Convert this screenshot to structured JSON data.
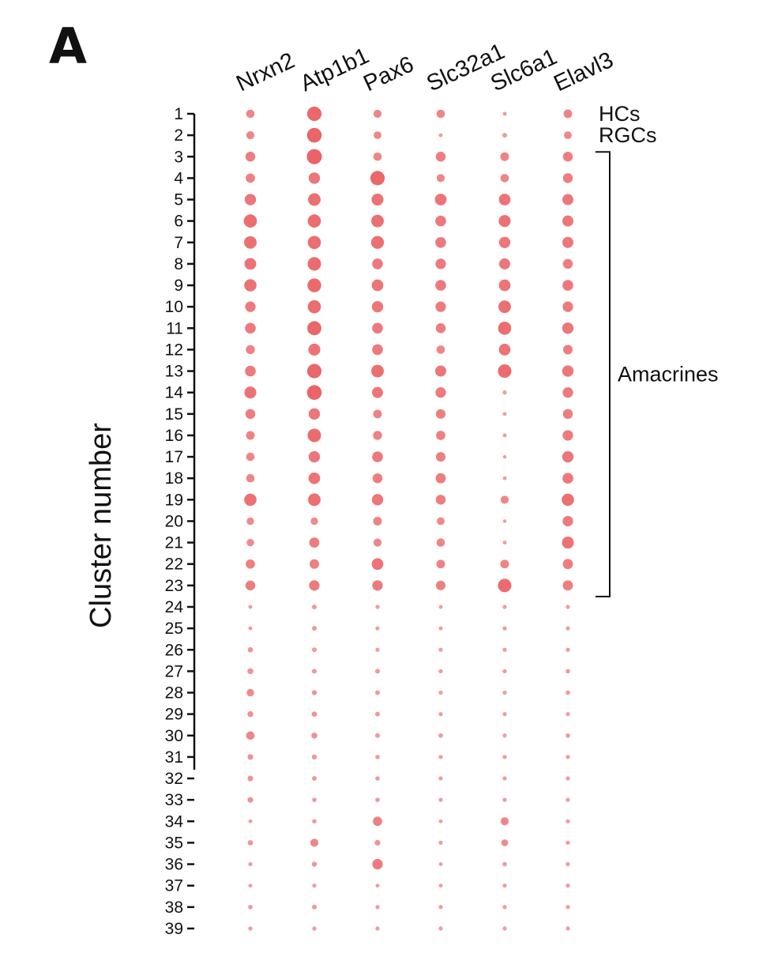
{
  "panel_label": "A",
  "chart_data": {
    "type": "scatter",
    "ylabel": "Cluster number",
    "genes": [
      "Nrxn2",
      "Atp1b1",
      "Pax6",
      "Slc32a1",
      "Slc6a1",
      "Elavl3"
    ],
    "clusters": [
      1,
      2,
      3,
      4,
      5,
      6,
      7,
      8,
      9,
      10,
      11,
      12,
      13,
      14,
      15,
      16,
      17,
      18,
      19,
      20,
      21,
      22,
      23,
      24,
      25,
      26,
      27,
      28,
      29,
      30,
      31,
      32,
      33,
      34,
      35,
      36,
      37,
      38,
      39
    ],
    "group_annotations": [
      {
        "label": "HCs",
        "clusters": [
          1
        ]
      },
      {
        "label": "RGCs",
        "clusters": [
          2
        ]
      },
      {
        "label": "Amacrines",
        "clusters": [
          3,
          23
        ]
      }
    ],
    "color": "#e8585b",
    "dot_size_scale": "relative expression, 0–1",
    "values": [
      [
        0.4,
        0.8,
        0.38,
        0.4,
        0.1,
        0.42
      ],
      [
        0.38,
        0.82,
        0.36,
        0.1,
        0.16,
        0.36
      ],
      [
        0.5,
        0.85,
        0.4,
        0.5,
        0.42,
        0.5
      ],
      [
        0.46,
        0.6,
        0.8,
        0.38,
        0.4,
        0.5
      ],
      [
        0.6,
        0.68,
        0.64,
        0.62,
        0.62,
        0.58
      ],
      [
        0.72,
        0.72,
        0.68,
        0.56,
        0.64,
        0.58
      ],
      [
        0.68,
        0.72,
        0.7,
        0.56,
        0.6,
        0.58
      ],
      [
        0.62,
        0.74,
        0.56,
        0.54,
        0.58,
        0.5
      ],
      [
        0.66,
        0.76,
        0.62,
        0.56,
        0.62,
        0.56
      ],
      [
        0.54,
        0.72,
        0.6,
        0.54,
        0.68,
        0.54
      ],
      [
        0.56,
        0.78,
        0.56,
        0.5,
        0.72,
        0.6
      ],
      [
        0.44,
        0.64,
        0.56,
        0.4,
        0.62,
        0.48
      ],
      [
        0.56,
        0.8,
        0.68,
        0.58,
        0.74,
        0.6
      ],
      [
        0.64,
        0.82,
        0.58,
        0.54,
        0.12,
        0.54
      ],
      [
        0.5,
        0.6,
        0.42,
        0.48,
        0.1,
        0.5
      ],
      [
        0.42,
        0.74,
        0.44,
        0.46,
        0.1,
        0.54
      ],
      [
        0.4,
        0.6,
        0.56,
        0.48,
        0.08,
        0.6
      ],
      [
        0.4,
        0.62,
        0.5,
        0.52,
        0.1,
        0.56
      ],
      [
        0.66,
        0.68,
        0.6,
        0.5,
        0.38,
        0.66
      ],
      [
        0.34,
        0.34,
        0.42,
        0.36,
        0.08,
        0.54
      ],
      [
        0.34,
        0.52,
        0.38,
        0.4,
        0.1,
        0.64
      ],
      [
        0.46,
        0.48,
        0.62,
        0.42,
        0.42,
        0.52
      ],
      [
        0.5,
        0.54,
        0.54,
        0.48,
        0.74,
        0.52
      ],
      [
        0.1,
        0.16,
        0.12,
        0.1,
        0.12,
        0.12
      ],
      [
        0.1,
        0.16,
        0.12,
        0.1,
        0.12,
        0.12
      ],
      [
        0.2,
        0.16,
        0.12,
        0.12,
        0.12,
        0.12
      ],
      [
        0.24,
        0.16,
        0.16,
        0.12,
        0.12,
        0.14
      ],
      [
        0.34,
        0.18,
        0.16,
        0.12,
        0.12,
        0.14
      ],
      [
        0.24,
        0.2,
        0.16,
        0.12,
        0.12,
        0.12
      ],
      [
        0.4,
        0.24,
        0.16,
        0.14,
        0.12,
        0.14
      ],
      [
        0.22,
        0.18,
        0.14,
        0.12,
        0.12,
        0.12
      ],
      [
        0.22,
        0.16,
        0.14,
        0.12,
        0.12,
        0.12
      ],
      [
        0.22,
        0.14,
        0.14,
        0.12,
        0.12,
        0.12
      ],
      [
        0.1,
        0.14,
        0.46,
        0.1,
        0.38,
        0.12
      ],
      [
        0.2,
        0.38,
        0.22,
        0.12,
        0.3,
        0.12
      ],
      [
        0.12,
        0.18,
        0.54,
        0.1,
        0.14,
        0.12
      ],
      [
        0.1,
        0.12,
        0.1,
        0.1,
        0.12,
        0.12
      ],
      [
        0.14,
        0.16,
        0.12,
        0.12,
        0.12,
        0.12
      ],
      [
        0.12,
        0.12,
        0.12,
        0.12,
        0.12,
        0.12
      ]
    ]
  }
}
